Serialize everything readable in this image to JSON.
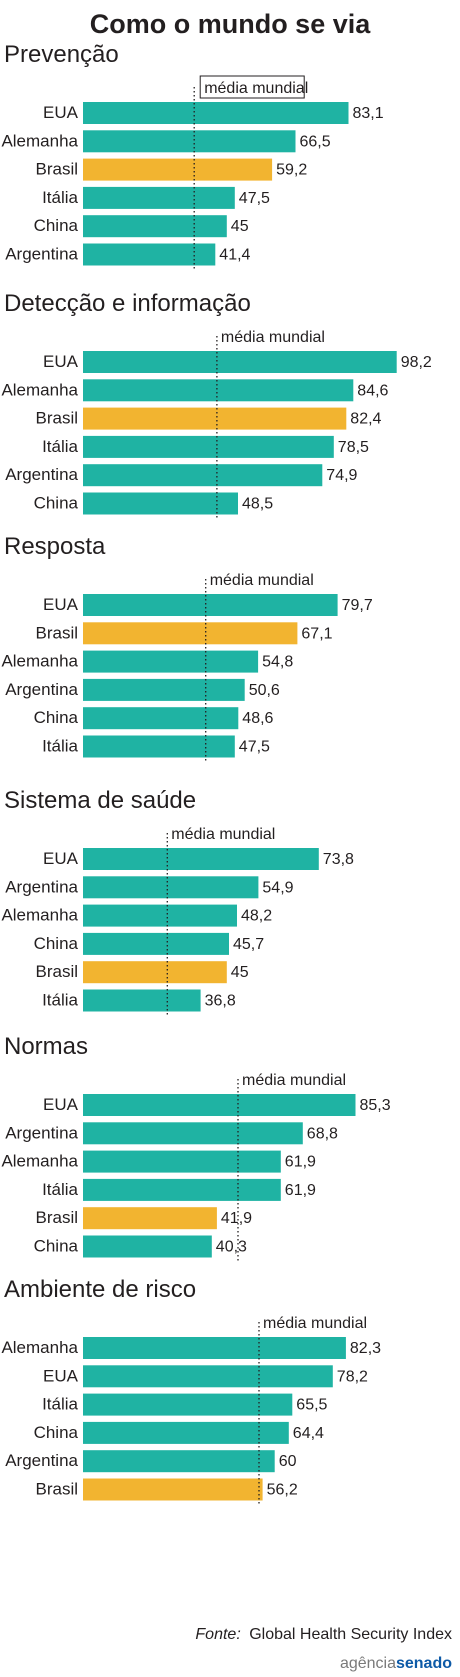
{
  "title": "Como o mundo se via",
  "avg_label": "média mundial",
  "colors": {
    "bar": "#1fb3a3",
    "bar_highlight": "#f2b430",
    "highlight_category": "Brasil",
    "text": "#231f20"
  },
  "source": {
    "label": "Fonte:",
    "text": "Global Health Security Index"
  },
  "brand": {
    "part1": "agência",
    "part2": "senado"
  },
  "chart_data": [
    {
      "type": "bar",
      "orientation": "horizontal",
      "title": "Prevenção",
      "xlim": [
        0,
        100
      ],
      "categories": [
        "EUA",
        "Alemanha",
        "Brasil",
        "Itália",
        "China",
        "Argentina"
      ],
      "values": [
        83.1,
        66.5,
        59.2,
        47.5,
        45,
        41.4
      ],
      "value_labels": [
        "83,1",
        "66,5",
        "59,2",
        "47,5",
        "45",
        "41,4"
      ],
      "average_line": 34.8
    },
    {
      "type": "bar",
      "orientation": "horizontal",
      "title": "Detecção e informação",
      "xlim": [
        0,
        100
      ],
      "categories": [
        "EUA",
        "Alemanha",
        "Brasil",
        "Itália",
        "Argentina",
        "China"
      ],
      "values": [
        98.2,
        84.6,
        82.4,
        78.5,
        74.9,
        48.5
      ],
      "value_labels": [
        "98,2",
        "84,6",
        "82,4",
        "78,5",
        "74,9",
        "48,5"
      ],
      "average_line": 41.9
    },
    {
      "type": "bar",
      "orientation": "horizontal",
      "title": "Resposta",
      "xlim": [
        0,
        100
      ],
      "categories": [
        "EUA",
        "Brasil",
        "Alemanha",
        "Argentina",
        "China",
        "Itália"
      ],
      "values": [
        79.7,
        67.1,
        54.8,
        50.6,
        48.6,
        47.5
      ],
      "value_labels": [
        "79,7",
        "67,1",
        "54,8",
        "50,6",
        "48,6",
        "47,5"
      ],
      "average_line": 38.4
    },
    {
      "type": "bar",
      "orientation": "horizontal",
      "title": "Sistema de saúde",
      "xlim": [
        0,
        100
      ],
      "categories": [
        "EUA",
        "Argentina",
        "Alemanha",
        "China",
        "Brasil",
        "Itália"
      ],
      "values": [
        73.8,
        54.9,
        48.2,
        45.7,
        45,
        36.8
      ],
      "value_labels": [
        "73,8",
        "54,9",
        "48,2",
        "45,7",
        "45",
        "36,8"
      ],
      "average_line": 26.4
    },
    {
      "type": "bar",
      "orientation": "horizontal",
      "title": "Normas",
      "xlim": [
        0,
        100
      ],
      "categories": [
        "EUA",
        "Argentina",
        "Alemanha",
        "Itália",
        "Brasil",
        "China"
      ],
      "values": [
        85.3,
        68.8,
        61.9,
        61.9,
        41.9,
        40.3
      ],
      "value_labels": [
        "85,3",
        "68,8",
        "61,9",
        "61,9",
        "41,9",
        "40,3"
      ],
      "average_line": 48.5
    },
    {
      "type": "bar",
      "orientation": "horizontal",
      "title": "Ambiente de risco",
      "xlim": [
        0,
        100
      ],
      "categories": [
        "Alemanha",
        "EUA",
        "Itália",
        "China",
        "Argentina",
        "Brasil"
      ],
      "values": [
        82.3,
        78.2,
        65.5,
        64.4,
        60,
        56.2
      ],
      "value_labels": [
        "82,3",
        "78,2",
        "65,5",
        "64,4",
        "60",
        "56,2"
      ],
      "average_line": 55.1
    }
  ]
}
